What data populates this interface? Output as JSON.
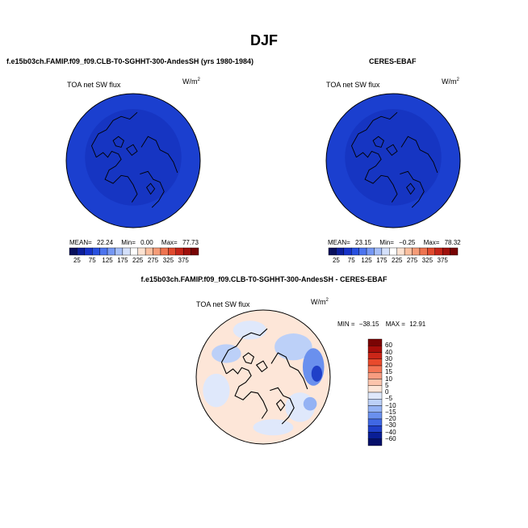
{
  "page": {
    "season": "DJF",
    "bottom_title": "f.e15b03ch.FAMIP.f09_f09.CLB-T0-SGHHT-300-AndesSH - CERES-EBAF"
  },
  "chart_data": [
    {
      "type": "heatmap",
      "title": "f.e15b03ch.FAMIP.f09_f09.CLB-T0-SGHHT-300-AndesSH (yrs 1980-1984)",
      "variable": "TOA net SW flux",
      "units": "W/m²",
      "projection": "polar-stereographic-north",
      "stats": {
        "mean_label": "MEAN=",
        "mean": "22.24",
        "min_label": "Min=",
        "min": "0.00",
        "max_label": "Max=",
        "max": "77.73"
      },
      "colorbar": {
        "labels": [
          "25",
          "75",
          "125",
          "175",
          "225",
          "275",
          "325",
          "375"
        ],
        "colors": [
          "#08105c",
          "#0c1e9a",
          "#1632c8",
          "#2850e0",
          "#4c74ee",
          "#7698f4",
          "#a6bff8",
          "#d4e0fb",
          "#ffffff",
          "#fde3d2",
          "#fbc0a0",
          "#f59c78",
          "#ee7450",
          "#e04a2e",
          "#c42418",
          "#a0100c",
          "#780404"
        ]
      },
      "dominant_color": "#1b3fcf"
    },
    {
      "type": "heatmap",
      "title": "CERES-EBAF",
      "variable": "TOA net SW flux",
      "units": "W/m²",
      "projection": "polar-stereographic-north",
      "stats": {
        "mean_label": "MEAN=",
        "mean": "23.15",
        "min_label": "Min=",
        "min": "−0.25",
        "max_label": "Max=",
        "max": "78.32"
      },
      "colorbar": {
        "labels": [
          "25",
          "75",
          "125",
          "175",
          "225",
          "275",
          "325",
          "375"
        ],
        "colors": [
          "#08105c",
          "#0c1e9a",
          "#1632c8",
          "#2850e0",
          "#4c74ee",
          "#7698f4",
          "#a6bff8",
          "#d4e0fb",
          "#ffffff",
          "#fde3d2",
          "#fbc0a0",
          "#f59c78",
          "#ee7450",
          "#e04a2e",
          "#c42418",
          "#a0100c",
          "#780404"
        ]
      },
      "dominant_color": "#1b3fcf"
    },
    {
      "type": "heatmap",
      "title": "f.e15b03ch.FAMIP.f09_f09.CLB-T0-SGHHT-300-AndesSH - CERES-EBAF",
      "variable": "TOA net SW flux",
      "units": "W/m²",
      "projection": "polar-stereographic-north",
      "stats": {
        "min_label": "MIN =",
        "min": "−38.15",
        "max_label": "MAX =",
        "max": "12.91"
      },
      "colorbar": {
        "labels": [
          "60",
          "40",
          "30",
          "20",
          "15",
          "10",
          "5",
          "0",
          "−5",
          "−10",
          "−15",
          "−20",
          "−30",
          "−40",
          "−60"
        ],
        "colors": [
          "#7a0404",
          "#a80e0a",
          "#cc2618",
          "#e84a2c",
          "#f47454",
          "#f89c80",
          "#fcc4ac",
          "#fde6d8",
          "#dfe8fb",
          "#bcd0f8",
          "#94b2f4",
          "#6a90ee",
          "#4068e4",
          "#2040c8",
          "#0a1e96",
          "#06106a"
        ]
      },
      "dominant_color": "#fde6d8"
    }
  ]
}
